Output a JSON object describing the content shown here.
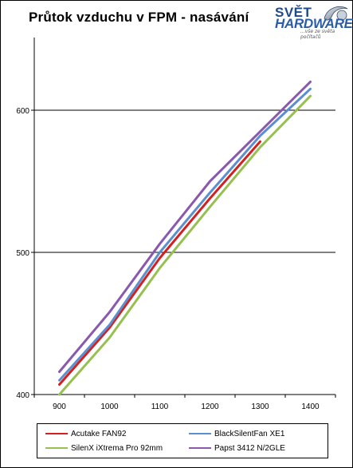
{
  "chart_data": {
    "type": "line",
    "title": "Průtok vzduchu v FPM - nasávání",
    "xlabel": "",
    "ylabel": "",
    "categories": [
      "900",
      "1000",
      "1100",
      "1200",
      "1300",
      "1400"
    ],
    "ylim": [
      400,
      600
    ],
    "yticks": [
      "400",
      "500",
      "600"
    ],
    "grid": "horizontal",
    "legend": "bottom",
    "series": [
      {
        "name": "Acutake FAN92",
        "color": "#d42020",
        "values": [
          407,
          447,
          496,
          538,
          578,
          null
        ]
      },
      {
        "name": "BlackSilentFan XE1",
        "color": "#5b8fd0",
        "values": [
          410,
          449,
          500,
          542,
          582,
          615
        ]
      },
      {
        "name": "SilenX iXtrema Pro 92mm",
        "color": "#96c050",
        "values": [
          400,
          440,
          489,
          532,
          574,
          610
        ]
      },
      {
        "name": "Papst 3412 N/2GLE",
        "color": "#8a58ad",
        "values": [
          416,
          458,
          506,
          550,
          585,
          620
        ]
      }
    ]
  },
  "logo": {
    "line1": "SVĚT",
    "line2": "HARDWARE",
    "tagline": "...vše ze světa počítačů"
  }
}
